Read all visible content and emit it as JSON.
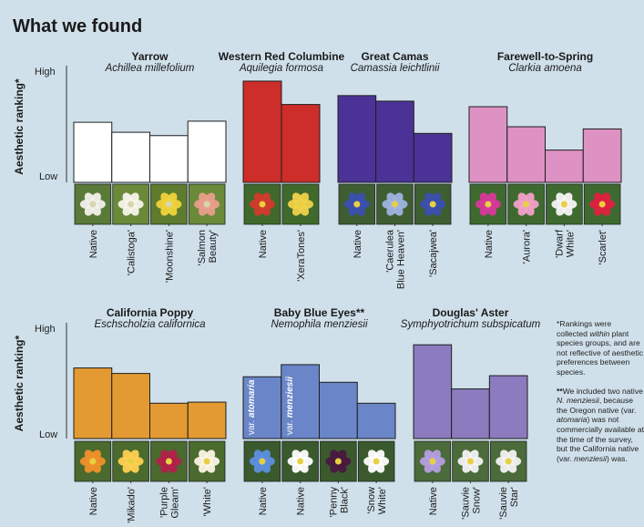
{
  "page": {
    "heading": "What we found",
    "y_axis_label": "Aesthetic ranking*",
    "axis_high_label": "High",
    "axis_low_label": "Low",
    "footnote_1_lead": "*",
    "footnote_1_a": "Rankings were collected ",
    "footnote_1_em": "within",
    "footnote_1_b": " plant species groups, and are not reflective of aesthetic preferences between species.",
    "footnote_2_lead": "**",
    "footnote_2_a": "We included two native ",
    "footnote_2_em1": "N. menziesii",
    "footnote_2_b": ", because the Oregon native (var. ",
    "footnote_2_em2": "atomaria",
    "footnote_2_c": ") was not commercially available at the time of the survey, but the California native (var. ",
    "footnote_2_em3": "menziesii",
    "footnote_2_d": ") was."
  },
  "colors": {
    "white": "#ffffff",
    "red": "#cd2e2a",
    "purple": "#4b3296",
    "pink": "#dd92c3",
    "orange": "#e39a32",
    "blue": "#6a86c8",
    "lavender": "#8c7bbf",
    "background": "#cfe0ea"
  },
  "chart_data": [
    {
      "type": "bar",
      "row": 1,
      "ylim": [
        0,
        100
      ],
      "groups": [
        {
          "name": "Yarrow",
          "latin": "Achillea millefolium",
          "color": "white",
          "photo_color": "flower-white",
          "categories": [
            "Native",
            "'Calistoga'",
            "'Moonshine'",
            "'Salmon Beauty'"
          ],
          "values": [
            54,
            45,
            42,
            55
          ]
        },
        {
          "name": "Western Red Columbine",
          "latin": "Aquilegia formosa",
          "color": "red",
          "photo_color": "flower-red-yellow",
          "categories": [
            "Native",
            "'XeraTones'"
          ],
          "values": [
            91,
            70
          ]
        },
        {
          "name": "Great Camas",
          "latin": "Camassia leichtlinii",
          "color": "purple",
          "photo_color": "flower-blue",
          "categories": [
            "Native",
            "'Caerulea Blue Heaven'",
            "'Sacajwea'"
          ],
          "values": [
            78,
            73,
            44
          ]
        },
        {
          "name": "Farewell-to-Spring",
          "latin": "Clarkia amoena",
          "color": "pink",
          "photo_color": "flower-pink",
          "categories": [
            "Native",
            "'Aurora'",
            "'Dwarf White'",
            "'Scarlet'"
          ],
          "values": [
            68,
            50,
            29,
            48
          ]
        }
      ]
    },
    {
      "type": "bar",
      "row": 2,
      "ylim": [
        0,
        100
      ],
      "groups": [
        {
          "name": "California Poppy",
          "latin": "Eschscholzia californica",
          "color": "orange",
          "photo_color": "flower-orange",
          "categories": [
            "Native",
            "'Mikado'",
            "'Purple Gleam'",
            "'White'"
          ],
          "values": [
            64,
            59,
            32,
            33
          ]
        },
        {
          "name": "Baby Blue Eyes**",
          "latin": "Nemophila menziesii",
          "color": "blue",
          "photo_color": "flower-blue-white",
          "categories": [
            "Native",
            "Native",
            "'Penny Black'",
            "'Snow White'"
          ],
          "bar_labels": [
            "var. atomaria",
            "var. menziesii",
            "",
            ""
          ],
          "values": [
            56,
            67,
            51,
            32
          ]
        },
        {
          "name": "Douglas' Aster",
          "latin": "Symphyotrichum subspicatum",
          "color": "lavender",
          "photo_color": "flower-lavender",
          "categories": [
            "Native",
            "'Sauvie Snow'",
            "'Sauvie Star'"
          ],
          "values": [
            85,
            45,
            57
          ]
        }
      ]
    }
  ]
}
